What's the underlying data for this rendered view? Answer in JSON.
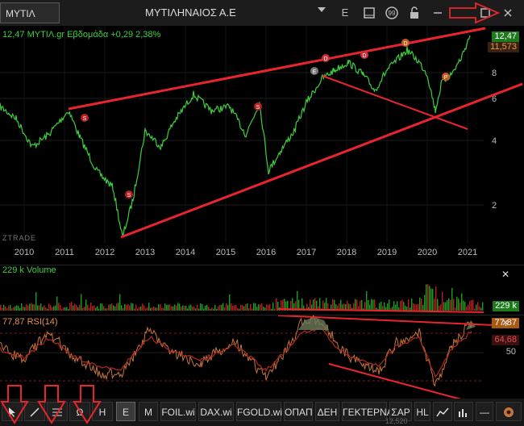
{
  "window": {
    "symbol": "ΜΥΤΙΛ",
    "title": "ΜΥΤΙΛΗΝΑΙΟΣ Α.Ε",
    "buttons": [
      "E",
      "□",
      "99",
      "🔒",
      "—",
      "□",
      "✕"
    ]
  },
  "price_panel": {
    "legend": "12,47 ΜΥΤΙΛ.gr Εβδομάδα +0,29 2,38%",
    "last_price": "12,47",
    "second_price": "11,573",
    "watermark": "ZTRADE",
    "y_ticks": [
      "8",
      "6",
      "4",
      "2"
    ],
    "x_ticks": [
      "2010",
      "2011",
      "2012",
      "2013",
      "2014",
      "2015",
      "2016",
      "2017",
      "2018",
      "2019",
      "2020",
      "2021"
    ],
    "markers": [
      "S",
      "S",
      "S",
      "D",
      "D",
      "D",
      "E",
      "P"
    ]
  },
  "volume_panel": {
    "legend": "229 k Volume",
    "last_value": "229 k",
    "close": "✕"
  },
  "rsi_panel": {
    "legend": "77,87 RSI(14)",
    "last_value": "77,87",
    "second_value": "64,68",
    "level": "50",
    "close": "✕"
  },
  "bottom_bar": {
    "tabs": [
      "E",
      "M",
      "FOIL.wi",
      "DAX.wi",
      "FGOLD.wi",
      "ΟΠΑΠ",
      "ΔΕΗ",
      "ΓΕΚΤΕΡΝΑ",
      "ΣΑΡ",
      "HL"
    ],
    "active_tab": "E",
    "partial_text": "12,520"
  },
  "colors": {
    "price_line": "#3ecf3e",
    "annotation": "#e8252c",
    "volume_up": "#1f9d1f",
    "volume_down": "#b82020",
    "rsi_line": "#c8753a",
    "rsi_signal": "#b12a1f",
    "tag_green": "#1d7a1d",
    "tag_orange": "#a85a12"
  }
}
